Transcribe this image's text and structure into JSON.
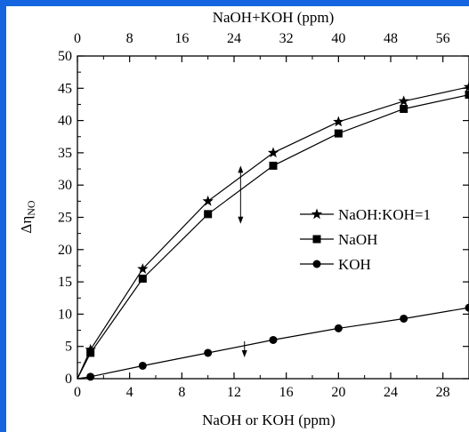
{
  "colors": {
    "frame": "#1565e0",
    "background": "#ffffff",
    "ink": "#000000"
  },
  "chart_data": {
    "type": "line",
    "title": "",
    "xlabel": "NaOH or KOH  (ppm)",
    "x2label": "NaOH+KOH  (ppm)",
    "ylabel_main": "Δη",
    "ylabel_sub": "NO",
    "xlim": [
      0,
      30
    ],
    "x2lim": [
      0,
      60
    ],
    "ylim": [
      0,
      50
    ],
    "xticks": [
      "0",
      "4",
      "8",
      "12",
      "16",
      "20",
      "24",
      "28"
    ],
    "x2ticks": [
      "0",
      "8",
      "16",
      "24",
      "32",
      "40",
      "48",
      "56"
    ],
    "yticks": [
      "0",
      "5",
      "10",
      "15",
      "20",
      "25",
      "30",
      "35",
      "40",
      "45",
      "50"
    ],
    "grid": false,
    "legend_position": "right-middle",
    "series": [
      {
        "name": "NaOH:KOH=1",
        "marker": "star",
        "x": [
          0,
          1,
          5,
          10,
          15,
          20,
          25,
          30
        ],
        "values": [
          0,
          4.5,
          17,
          27.5,
          35,
          39.8,
          43,
          45.2
        ]
      },
      {
        "name": "NaOH",
        "marker": "square",
        "x": [
          0,
          1,
          5,
          10,
          15,
          20,
          25,
          30
        ],
        "values": [
          0,
          4,
          15.5,
          25.5,
          33,
          38,
          41.8,
          44
        ]
      },
      {
        "name": "KOH",
        "marker": "circle",
        "x": [
          0,
          1,
          5,
          10,
          15,
          20,
          25,
          30
        ],
        "values": [
          0,
          0.3,
          2,
          4,
          6,
          7.8,
          9.3,
          11
        ]
      }
    ],
    "annotations": [
      {
        "type": "double-arrow",
        "x": 12.5,
        "y_from": 24,
        "y_to": 33
      },
      {
        "type": "arrow-down",
        "x": 12.8,
        "y_from": 5.8,
        "y_to": 3.3
      }
    ]
  }
}
